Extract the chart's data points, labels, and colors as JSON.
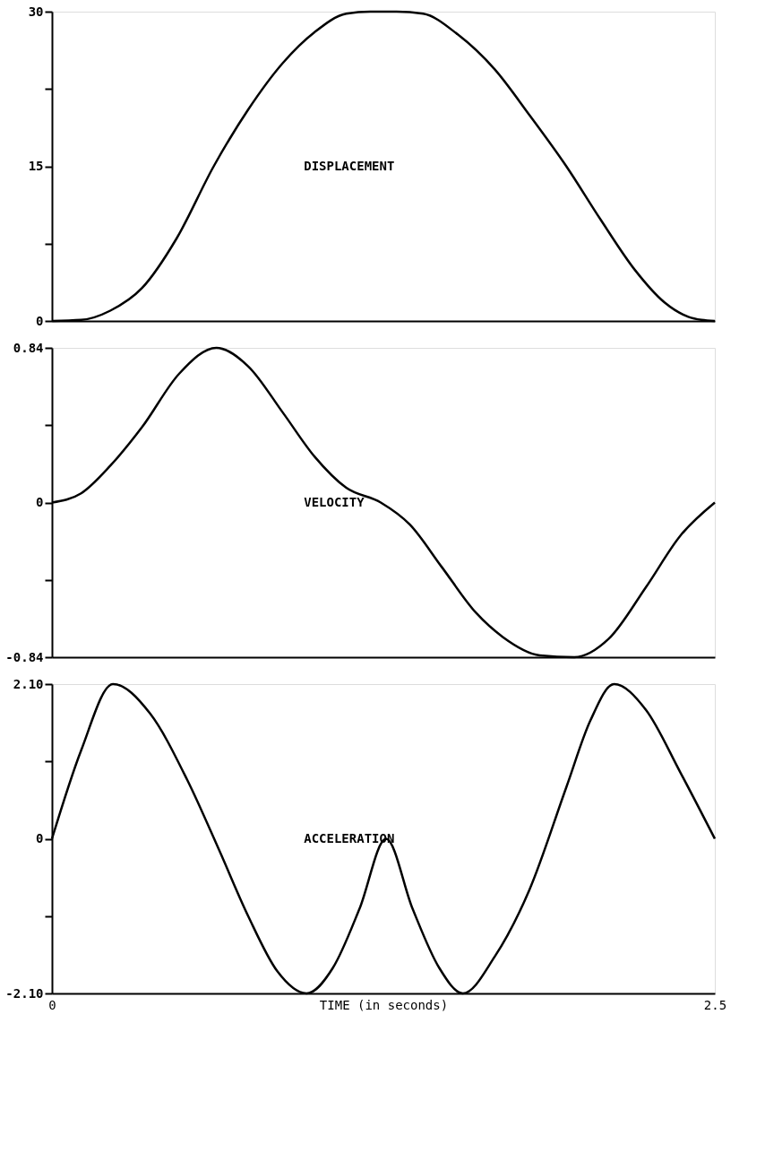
{
  "chart_data": [
    {
      "type": "line",
      "xlim": [
        0,
        2.5
      ],
      "ylim": [
        0,
        30
      ],
      "yticks": [
        0,
        {
          "value": 7.5,
          "label": null
        },
        15,
        {
          "value": 22.5,
          "label": null
        },
        30
      ],
      "tick_labels": "y",
      "series": [
        {
          "name": "DISPLACEMENT",
          "color": "#000000",
          "x": [
            0,
            0.11,
            0.22,
            0.34,
            0.47,
            0.61,
            0.74,
            0.87,
            0.99,
            1.11,
            1.2,
            1.3,
            1.4,
            1.53,
            1.67,
            1.8,
            1.94,
            2.07,
            2.2,
            2.31,
            2.4,
            2.45,
            2.5
          ],
          "values": [
            0,
            0.1,
            1,
            3.2,
            8,
            15,
            20.5,
            25,
            28,
            29.8,
            30,
            30,
            29.8,
            27.8,
            24.4,
            20,
            15,
            9.8,
            4.9,
            1.8,
            0.4,
            0.1,
            0
          ]
        }
      ]
    },
    {
      "type": "line",
      "xlim": [
        0,
        2.5
      ],
      "ylim": [
        -0.84,
        0.84
      ],
      "yticks": [
        -0.84,
        {
          "value": -0.42,
          "label": null
        },
        0,
        {
          "value": 0.42,
          "label": null
        },
        0.84
      ],
      "tick_labels": "y",
      "series": [
        {
          "name": "VELOCITY",
          "color": "#000000",
          "x": [
            0,
            0.11,
            0.22,
            0.34,
            0.48,
            0.62,
            0.74,
            0.87,
            0.99,
            1.11,
            1.24,
            1.35,
            1.47,
            1.6,
            1.7,
            1.84,
            1.97,
            2.1,
            2.24,
            2.37,
            2.5
          ],
          "values": [
            0,
            0.05,
            0.2,
            0.41,
            0.7,
            0.84,
            0.74,
            0.49,
            0.25,
            0.08,
            0,
            -0.12,
            -0.35,
            -0.6,
            -0.73,
            -0.83,
            -0.84,
            -0.74,
            -0.46,
            -0.18,
            0
          ]
        }
      ]
    },
    {
      "type": "line",
      "xlim": [
        0,
        2.5
      ],
      "ylim": [
        -2.1,
        2.1
      ],
      "yticks": [
        {
          "value": -2.1,
          "label": "-2.10"
        },
        {
          "value": -1.05,
          "label": null
        },
        0,
        {
          "value": 1.05,
          "label": null
        },
        {
          "value": 2.1,
          "label": "2.10"
        }
      ],
      "xticks": [
        0,
        2.5
      ],
      "xlabel": "TIME (in seconds)",
      "series": [
        {
          "name": "ACCELERATION",
          "color": "#000000",
          "x": [
            0,
            0.11,
            0.23,
            0.37,
            0.51,
            0.63,
            0.74,
            0.85,
            0.96,
            1.06,
            1.16,
            1.26,
            1.36,
            1.46,
            1.55,
            1.67,
            1.8,
            1.94,
            2.03,
            2.12,
            2.24,
            2.37,
            2.5
          ],
          "values": [
            0,
            1.2,
            2.1,
            1.7,
            0.8,
            -0.15,
            -1.05,
            -1.8,
            -2.1,
            -1.75,
            -0.95,
            0,
            -0.95,
            -1.75,
            -2.1,
            -1.6,
            -0.7,
            0.7,
            1.6,
            2.1,
            1.75,
            0.9,
            0
          ]
        }
      ]
    }
  ]
}
